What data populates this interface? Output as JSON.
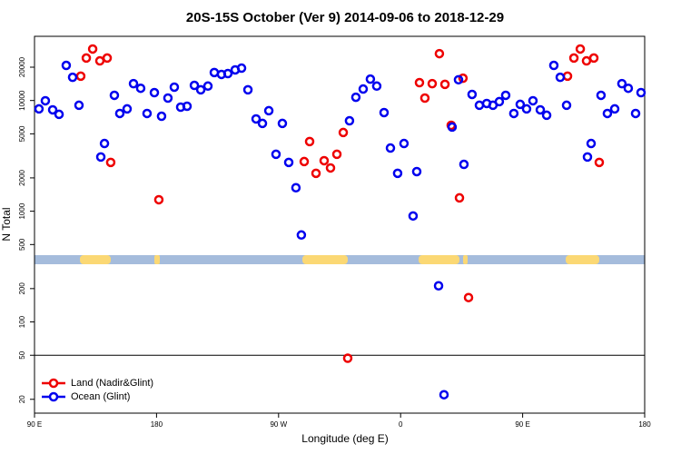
{
  "chart_data": {
    "type": "scatter",
    "title": "20S-15S October (Ver 9)   2014-09-06 to 2018-12-29",
    "x_label": "Longitude (deg E)",
    "y_label": "N Total",
    "log_y": true,
    "legend": "lower left",
    "hline": 50,
    "xlim": [
      90,
      540
    ],
    "ylim": [
      15,
      38000
    ],
    "xticks": [
      {
        "value": 90,
        "label": "90 E"
      },
      {
        "value": 180,
        "label": "180"
      },
      {
        "value": 270,
        "label": "90 W"
      },
      {
        "value": 360,
        "label": "0"
      },
      {
        "value": 450,
        "label": "90 E"
      },
      {
        "value": 540,
        "label": "180"
      }
    ],
    "yticks": [
      20,
      50,
      100,
      200,
      500,
      1000,
      2000,
      5000,
      10000,
      20000
    ],
    "series": [
      {
        "name": "Land (Nadir&Glint)",
        "color": "#ee0000",
        "x": [
          124.1,
          128.2,
          132.9,
          138.2,
          143.6,
          146.2,
          181.7,
          288.9,
          292.9,
          297.6,
          303.6,
          308.3,
          313.0,
          317.7,
          321.0,
          373.9,
          377.9,
          383.3,
          388.6,
          392.7,
          397.3,
          403.4,
          406.0,
          410.1,
          483.1,
          487.8,
          492.5,
          497.1,
          502.5,
          506.5
        ],
        "values": [
          16600,
          24200,
          29200,
          22800,
          24200,
          2760,
          1270,
          2810,
          4260,
          2200,
          2860,
          2460,
          3270,
          5140,
          47,
          14500,
          10520,
          14200,
          26500,
          14000,
          5970,
          1320,
          15900,
          166,
          16600,
          24200,
          29200,
          22800,
          24200,
          2760
        ]
      },
      {
        "name": "Ocean (Glint)",
        "color": "#0000ee",
        "x": [
          93.3,
          98.0,
          103.4,
          108.1,
          113.4,
          118.1,
          122.8,
          138.9,
          141.6,
          148.9,
          152.9,
          158.3,
          163.0,
          168.3,
          173.0,
          178.4,
          183.7,
          188.4,
          193.1,
          197.8,
          202.5,
          207.9,
          212.6,
          217.9,
          222.6,
          227.9,
          232.6,
          238.0,
          242.7,
          247.4,
          253.4,
          258.1,
          262.8,
          268.1,
          272.8,
          277.5,
          282.8,
          286.8,
          322.3,
          327.0,
          332.4,
          337.7,
          342.4,
          347.8,
          352.5,
          357.8,
          362.5,
          369.2,
          371.9,
          388.0,
          392.0,
          398.0,
          402.7,
          406.7,
          412.7,
          418.1,
          423.5,
          428.1,
          432.8,
          437.5,
          443.5,
          448.2,
          452.9,
          457.6,
          463.0,
          467.7,
          473.0,
          477.7,
          482.4,
          497.8,
          500.5,
          507.8,
          512.5,
          517.9,
          523.2,
          527.9,
          533.3,
          537.3
        ],
        "values": [
          8400,
          9950,
          8240,
          7500,
          20760,
          16200,
          9060,
          3090,
          4090,
          11140,
          7640,
          8400,
          14200,
          12900,
          7640,
          11780,
          7210,
          10520,
          13200,
          8710,
          8880,
          13700,
          12500,
          13500,
          17900,
          17200,
          17500,
          18900,
          19600,
          12500,
          6820,
          6210,
          8090,
          3270,
          6210,
          2760,
          1630,
          610,
          6560,
          10700,
          12700,
          15600,
          13500,
          7780,
          3720,
          2200,
          4090,
          906,
          2280,
          212,
          22,
          5760,
          15400,
          2650,
          11350,
          9060,
          9400,
          9060,
          9770,
          11140,
          7640,
          9230,
          8400,
          9950,
          8240,
          7360,
          20760,
          16200,
          9060,
          3090,
          4090,
          11140,
          7640,
          8400,
          14200,
          12900,
          7640,
          11780
        ]
      }
    ]
  }
}
